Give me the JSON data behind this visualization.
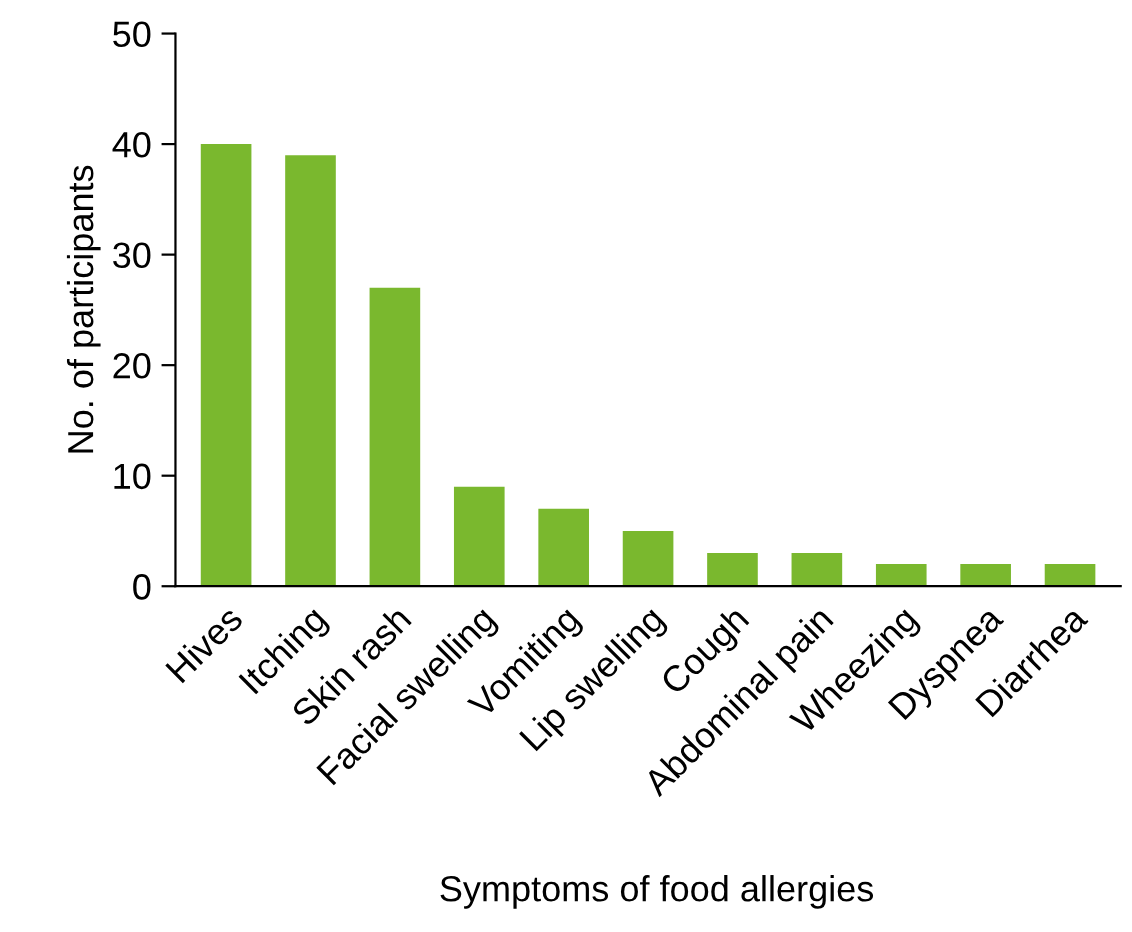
{
  "chart_data": {
    "type": "bar",
    "xlabel": "Symptoms of food allergies",
    "ylabel": "No. of participants",
    "categories": [
      "Hives",
      "Itching",
      "Skin rash",
      "Facial swelling",
      "Vomiting",
      "Lip swelling",
      "Cough",
      "Abdominal pain",
      "Wheezing",
      "Dyspnea",
      "Diarrhea"
    ],
    "values": [
      40,
      39,
      27,
      9,
      7,
      5,
      3,
      3,
      2,
      2,
      2
    ],
    "color": "#7ab82e",
    "ylim": [
      0,
      50
    ],
    "yticks": [
      0,
      10,
      20,
      30,
      40,
      50
    ],
    "grid": false,
    "legend": false
  }
}
